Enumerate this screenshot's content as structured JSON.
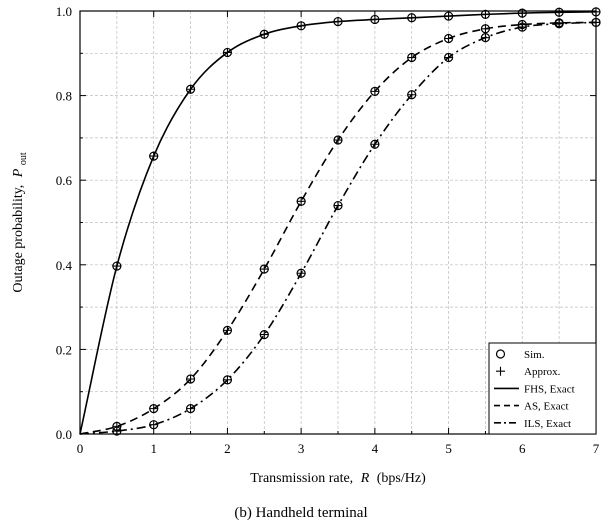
{
  "caption": "(b) Handheld terminal",
  "chart_data": {
    "type": "line",
    "xlabel": "Transmission rate,",
    "xlabel_var": "R",
    "xlabel_unit": "(bps/Hz)",
    "ylabel": "Outage probability,",
    "ylabel_var": "P",
    "ylabel_sub": "out",
    "xlim": [
      0,
      7
    ],
    "ylim": [
      0,
      1.0
    ],
    "xticks": [
      0,
      1,
      2,
      3,
      4,
      5,
      6,
      7
    ],
    "yticks": [
      0.0,
      0.2,
      0.4,
      0.6,
      0.8,
      1.0
    ],
    "ytick_labels": [
      "0.0",
      "0.2",
      "0.4",
      "0.6",
      "0.8",
      "1.0"
    ],
    "grid": true,
    "legend_position": "bottom-right",
    "legend": [
      {
        "label": "Sim.",
        "kind": "circle"
      },
      {
        "label": "Approx.",
        "kind": "plus"
      },
      {
        "label": "FHS, Exact",
        "kind": "solid"
      },
      {
        "label": "AS, Exact",
        "kind": "dashed"
      },
      {
        "label": "ILS, Exact",
        "kind": "dashdot"
      }
    ],
    "series": [
      {
        "name": "FHS",
        "style": "solid",
        "x": [
          0,
          0.5,
          1,
          1.5,
          2,
          2.5,
          3,
          3.5,
          4,
          4.5,
          5,
          5.5,
          6,
          6.5,
          7
        ],
        "values": [
          0,
          0.397,
          0.657,
          0.815,
          0.902,
          0.945,
          0.965,
          0.975,
          0.98,
          0.984,
          0.988,
          0.992,
          0.995,
          0.997,
          0.998
        ],
        "markers_x": [
          0.5,
          1,
          1.5,
          2,
          2.5,
          3,
          3.5,
          4,
          4.5,
          5,
          5.5,
          6,
          6.5,
          7
        ],
        "markers_y": [
          0.397,
          0.657,
          0.815,
          0.902,
          0.945,
          0.965,
          0.975,
          0.98,
          0.984,
          0.988,
          0.992,
          0.995,
          0.997,
          0.998
        ]
      },
      {
        "name": "AS",
        "style": "dashed",
        "x": [
          0,
          0.5,
          1,
          1.5,
          2,
          2.5,
          3,
          3.5,
          4,
          4.5,
          5,
          5.5,
          6,
          6.5,
          7
        ],
        "values": [
          0,
          0.018,
          0.06,
          0.13,
          0.245,
          0.39,
          0.55,
          0.695,
          0.81,
          0.89,
          0.935,
          0.958,
          0.968,
          0.972,
          0.973
        ],
        "markers_x": [
          0.5,
          1,
          1.5,
          2,
          2.5,
          3,
          3.5,
          4,
          4.5,
          5,
          5.5,
          6,
          6.5,
          7
        ],
        "markers_y": [
          0.018,
          0.06,
          0.13,
          0.245,
          0.39,
          0.55,
          0.695,
          0.81,
          0.89,
          0.935,
          0.958,
          0.968,
          0.972,
          0.973
        ]
      },
      {
        "name": "ILS",
        "style": "dashdot",
        "x": [
          0,
          0.5,
          1,
          1.5,
          2,
          2.5,
          3,
          3.5,
          4,
          4.5,
          5,
          5.5,
          6,
          6.5,
          7
        ],
        "values": [
          0,
          0.007,
          0.022,
          0.06,
          0.128,
          0.235,
          0.38,
          0.54,
          0.685,
          0.802,
          0.89,
          0.937,
          0.962,
          0.97,
          0.973
        ],
        "markers_x": [
          0.5,
          1,
          1.5,
          2,
          2.5,
          3,
          3.5,
          4,
          4.5,
          5,
          5.5,
          6,
          6.5,
          7
        ],
        "markers_y": [
          0.007,
          0.022,
          0.06,
          0.128,
          0.235,
          0.38,
          0.54,
          0.685,
          0.802,
          0.89,
          0.937,
          0.962,
          0.97,
          0.973
        ]
      }
    ]
  }
}
